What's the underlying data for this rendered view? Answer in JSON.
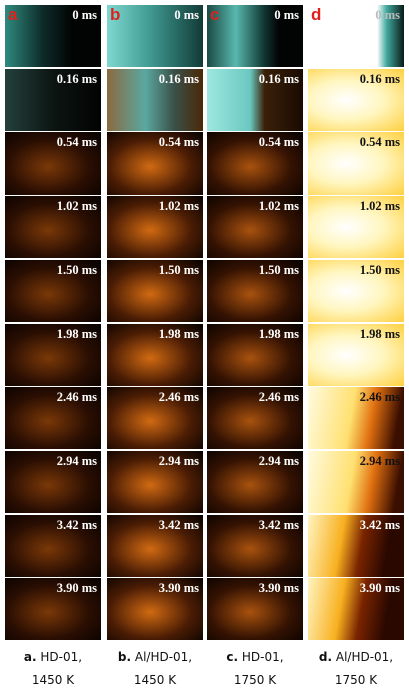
{
  "panels": [
    {
      "letter": "a",
      "caption": {
        "label": "a.",
        "sample": "HD-01,",
        "temperature": "1450 K"
      },
      "frames": [
        "0 ms",
        "0.16 ms",
        "0.54 ms",
        "1.02 ms",
        "1.50 ms",
        "1.98 ms",
        "2.46 ms",
        "2.94 ms",
        "3.42 ms",
        "3.90 ms"
      ]
    },
    {
      "letter": "b",
      "caption": {
        "label": "b.",
        "sample": "Al/HD-01,",
        "temperature": "1450 K"
      },
      "frames": [
        "0 ms",
        "0.16 ms",
        "0.54 ms",
        "1.02 ms",
        "1.50 ms",
        "1.98 ms",
        "2.46 ms",
        "2.94 ms",
        "3.42 ms",
        "3.90 ms"
      ]
    },
    {
      "letter": "c",
      "caption": {
        "label": "c.",
        "sample": "HD-01,",
        "temperature": "1750 K"
      },
      "frames": [
        "0 ms",
        "0.16 ms",
        "0.54 ms",
        "1.02 ms",
        "1.50 ms",
        "1.98 ms",
        "2.46 ms",
        "2.94 ms",
        "3.42 ms",
        "3.90 ms"
      ]
    },
    {
      "letter": "d",
      "caption": {
        "label": "d.",
        "sample": "Al/HD-01,",
        "temperature": "1750 K"
      },
      "frames": [
        "0 ms",
        "0.16 ms",
        "0.54 ms",
        "1.02 ms",
        "1.50 ms",
        "1.98 ms",
        "2.46 ms",
        "2.94 ms",
        "3.42 ms",
        "3.90 ms"
      ]
    }
  ]
}
